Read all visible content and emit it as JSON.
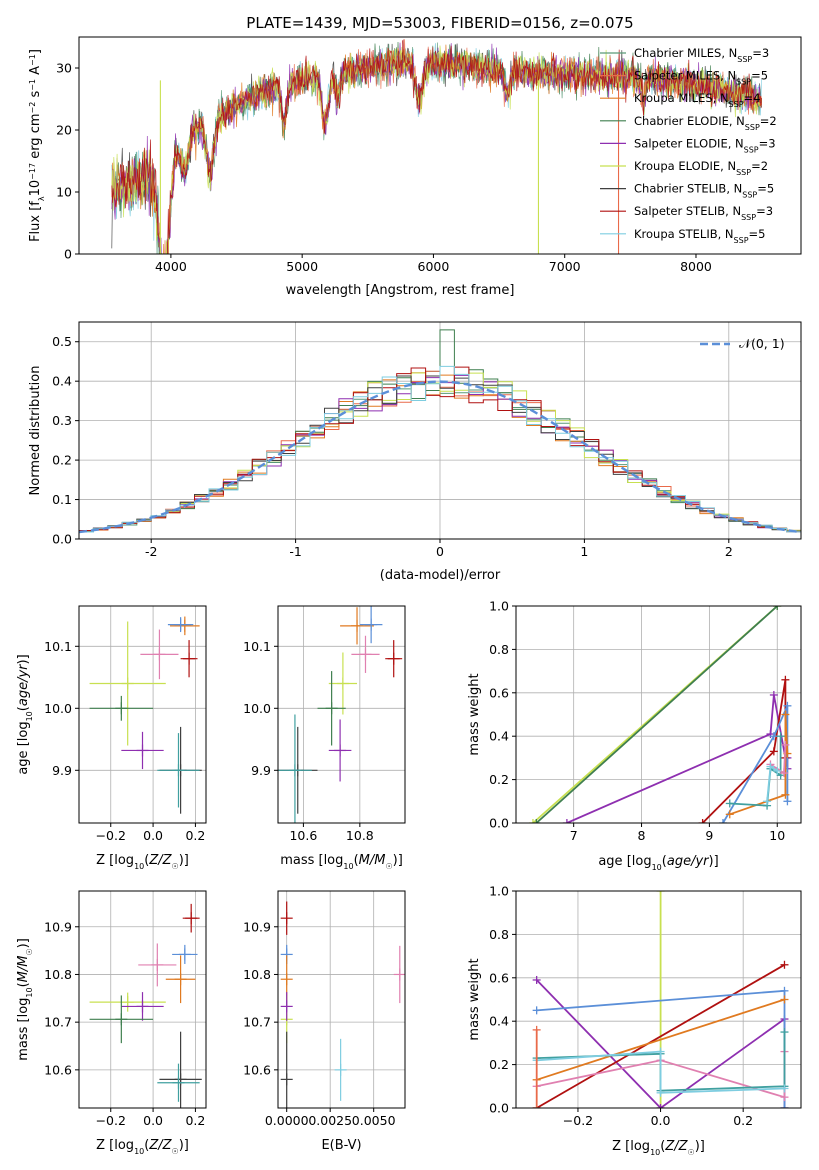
{
  "figure_title": "PLATE=1439, MJD=53003, FIBERID=0156, z=0.075",
  "colors": {
    "chab_miles": "#5a9a78",
    "salp_miles": "#e96a4a",
    "krou_miles": "#e07a20",
    "chab_elodie": "#3f7f4f",
    "salp_elodie": "#8e2fb0",
    "krou_elodie": "#c8e050",
    "chab_stelib": "#404040",
    "salp_stelib": "#b01010",
    "krou_stelib": "#7ecde0",
    "blue": "#5b8fd8",
    "pink": "#e080b0",
    "teal": "#40a0a0"
  },
  "chart_data": [
    {
      "id": "spectrum",
      "type": "line",
      "xlabel": "wavelength [Angstrom, rest frame]",
      "ylabel": "Flux [f_λ10^-17 erg cm^-2 s^-1 A^-1]",
      "xlim": [
        3300,
        8800
      ],
      "ylim": [
        0,
        35
      ],
      "xticks": [
        4000,
        5000,
        6000,
        7000,
        8000
      ],
      "yticks": [
        0,
        10,
        20,
        30
      ],
      "grid": false,
      "legend_position": "top-right",
      "continuum_x": [
        3550,
        3700,
        3900,
        4000,
        4100,
        4300,
        4500,
        4800,
        5000,
        5200,
        5500,
        5800,
        6200,
        6600,
        7000,
        7400,
        7800,
        8200,
        8500
      ],
      "continuum_y": [
        10,
        11.5,
        13.5,
        17,
        19.5,
        21,
        24,
        27,
        28,
        29,
        30,
        31,
        30.5,
        29.5,
        29,
        28.5,
        28,
        26.5,
        25
      ],
      "series": [
        {
          "name": "Chabrier MILES, N_SSP=3",
          "color_key": "chab_miles"
        },
        {
          "name": "Salpeter MILES, N_SSP=5",
          "color_key": "salp_miles"
        },
        {
          "name": "Kroupa MILES, N_SSP=4",
          "color_key": "krou_miles"
        },
        {
          "name": "Chabrier ELODIE, N_SSP=2",
          "color_key": "chab_elodie"
        },
        {
          "name": "Salpeter ELODIE, N_SSP=3",
          "color_key": "salp_elodie"
        },
        {
          "name": "Kroupa ELODIE, N_SSP=2",
          "color_key": "krou_elodie"
        },
        {
          "name": "Chabrier STELIB, N_SSP=5",
          "color_key": "chab_stelib"
        },
        {
          "name": "Salpeter STELIB, N_SSP=3",
          "color_key": "salp_stelib"
        },
        {
          "name": "Kroupa STELIB, N_SSP=5",
          "color_key": "krou_stelib"
        }
      ],
      "dropouts": [
        {
          "x": 3920,
          "color_key": "krou_elodie"
        },
        {
          "x": 6800,
          "color_key": "krou_elodie"
        },
        {
          "x": 7410,
          "color_key": "salp_miles"
        }
      ]
    },
    {
      "id": "residuals",
      "type": "line",
      "xlabel": "(data-model)/error",
      "ylabel": "Normed distribution",
      "xlim": [
        -2.5,
        2.5
      ],
      "ylim": [
        0,
        0.55
      ],
      "xticks": [
        -2,
        -1,
        0,
        1,
        2
      ],
      "yticks": [
        0.0,
        0.1,
        0.2,
        0.3,
        0.4,
        0.5
      ],
      "grid": true,
      "legend_position": "top-right",
      "reference": {
        "name": "𝒩(0, 1)",
        "color_key": "blue",
        "mu": 0,
        "sigma": 1
      },
      "bin_width": 0.1
    },
    {
      "id": "age_vs_Z",
      "type": "scatter",
      "xlabel": "Z [log10(Z/Z☉)]",
      "ylabel": "age  [log10(age/yr)]",
      "xlim": [
        -0.35,
        0.25
      ],
      "ylim": [
        9.815,
        10.165
      ],
      "xticks": [
        -0.2,
        0.0,
        0.2
      ],
      "xticklabels": [
        "−0.2",
        "0.0",
        "0.2"
      ],
      "yticks": [
        9.9,
        10.0,
        10.1
      ],
      "yticklabels": [
        "9.9",
        "10.0",
        "10.1"
      ],
      "grid": true,
      "points": [
        {
          "x": 0.15,
          "y": 10.133,
          "xerr": 0.07,
          "yerr": 0.015,
          "color_key": "krou_miles"
        },
        {
          "x": 0.13,
          "y": 10.135,
          "xerr": 0.06,
          "yerr": 0.012,
          "color_key": "blue"
        },
        {
          "x": 0.17,
          "y": 10.08,
          "xerr": 0.04,
          "yerr": 0.03,
          "color_key": "salp_stelib"
        },
        {
          "x": 0.03,
          "y": 10.087,
          "xerr": 0.09,
          "yerr": 0.04,
          "color_key": "pink"
        },
        {
          "x": -0.12,
          "y": 10.04,
          "xerr": 0.18,
          "yerr": 0.1,
          "color_key": "krou_elodie"
        },
        {
          "x": -0.15,
          "y": 10.0,
          "xerr": 0.15,
          "yerr": 0.02,
          "color_key": "chab_elodie"
        },
        {
          "x": -0.05,
          "y": 9.932,
          "xerr": 0.1,
          "yerr": 0.03,
          "color_key": "salp_elodie"
        },
        {
          "x": 0.13,
          "y": 9.9,
          "xerr": 0.1,
          "yerr": 0.07,
          "color_key": "chab_stelib"
        },
        {
          "x": 0.12,
          "y": 9.9,
          "xerr": 0.1,
          "yerr": 0.06,
          "color_key": "teal"
        }
      ]
    },
    {
      "id": "age_vs_mass",
      "type": "scatter",
      "xlabel": "mass [log10(M/M☉)]",
      "ylabel": "",
      "xlim": [
        10.51,
        10.96
      ],
      "ylim": [
        9.815,
        10.165
      ],
      "xticks": [
        10.6,
        10.8
      ],
      "xticklabels": [
        "10.6",
        "10.8"
      ],
      "yticks": [
        9.9,
        10.0,
        10.1
      ],
      "yticklabels": [
        "9.9",
        "10.0",
        "10.1"
      ],
      "grid": true,
      "points": [
        {
          "x": 10.79,
          "y": 10.133,
          "xerr": 0.06,
          "yerr": 0.03,
          "color_key": "krou_miles"
        },
        {
          "x": 10.84,
          "y": 10.135,
          "xerr": 0.04,
          "yerr": 0.03,
          "color_key": "blue"
        },
        {
          "x": 10.92,
          "y": 10.08,
          "xerr": 0.03,
          "yerr": 0.03,
          "color_key": "salp_stelib"
        },
        {
          "x": 10.82,
          "y": 10.087,
          "xerr": 0.05,
          "yerr": 0.03,
          "color_key": "pink"
        },
        {
          "x": 10.74,
          "y": 10.04,
          "xerr": 0.05,
          "yerr": 0.05,
          "color_key": "krou_elodie"
        },
        {
          "x": 10.7,
          "y": 10.0,
          "xerr": 0.05,
          "yerr": 0.06,
          "color_key": "chab_elodie"
        },
        {
          "x": 10.73,
          "y": 9.932,
          "xerr": 0.04,
          "yerr": 0.05,
          "color_key": "salp_elodie"
        },
        {
          "x": 10.58,
          "y": 9.9,
          "xerr": 0.07,
          "yerr": 0.07,
          "color_key": "chab_stelib"
        },
        {
          "x": 10.57,
          "y": 9.9,
          "xerr": 0.06,
          "yerr": 0.09,
          "color_key": "teal"
        }
      ]
    },
    {
      "id": "weight_vs_age",
      "type": "line",
      "xlabel": "age  [log10(age/yr)]",
      "ylabel": "mass weight",
      "xlim": [
        6.15,
        10.35
      ],
      "ylim": [
        0,
        1
      ],
      "xticks": [
        7,
        8,
        9,
        10
      ],
      "xticklabels": [
        "7",
        "8",
        "9",
        "10"
      ],
      "yticks": [
        0,
        0.2,
        0.4,
        0.6,
        0.8,
        1.0
      ],
      "yticklabels": [
        "0.0",
        "0.2",
        "0.4",
        "0.6",
        "0.8",
        "1.0"
      ],
      "grid": true,
      "series": [
        {
          "color_key": "krou_elodie",
          "x": [
            6.4,
            10.0
          ],
          "y": [
            0,
            1
          ]
        },
        {
          "color_key": "chab_elodie",
          "x": [
            6.45,
            10.0
          ],
          "y": [
            0,
            1
          ]
        },
        {
          "color_key": "salp_elodie",
          "x": [
            6.9,
            9.9,
            9.95,
            10.15,
            10.15
          ],
          "y": [
            0,
            0.41,
            0.59,
            0.25,
            0.3
          ]
        },
        {
          "color_key": "salp_stelib",
          "x": [
            8.9,
            9.95,
            10.12,
            10.12
          ],
          "y": [
            0,
            0.33,
            0.66,
            0.3
          ]
        },
        {
          "color_key": "blue",
          "x": [
            9.2,
            9.95,
            10.15,
            10.15
          ],
          "y": [
            0,
            0.4,
            0.54,
            0.1
          ]
        },
        {
          "color_key": "krou_miles",
          "x": [
            9.3,
            10.12,
            10.12,
            10.15
          ],
          "y": [
            0.04,
            0.13,
            0.5,
            0.32
          ]
        },
        {
          "color_key": "teal",
          "x": [
            9.3,
            9.85,
            9.9,
            10.05,
            10.05
          ],
          "y": [
            0.09,
            0.08,
            0.25,
            0.22,
            0.4
          ]
        },
        {
          "color_key": "pink",
          "x": [
            9.9,
            10.1,
            10.12
          ],
          "y": [
            0.27,
            0.23,
            0.36
          ]
        },
        {
          "color_key": "krou_stelib",
          "x": [
            9.85,
            9.9,
            10.0
          ],
          "y": [
            0.1,
            0.26,
            0.24
          ]
        }
      ]
    },
    {
      "id": "mass_vs_Z",
      "type": "scatter",
      "xlabel": "Z [log10(Z/Z☉)]",
      "ylabel": "mass [log10(M/M☉)]",
      "xlim": [
        -0.35,
        0.25
      ],
      "ylim": [
        10.52,
        10.975
      ],
      "xticks": [
        -0.2,
        0.0,
        0.2
      ],
      "xticklabels": [
        "−0.2",
        "0.0",
        "0.2"
      ],
      "yticks": [
        10.6,
        10.7,
        10.8,
        10.9
      ],
      "yticklabels": [
        "10.6",
        "10.7",
        "10.8",
        "10.9"
      ],
      "grid": true,
      "points": [
        {
          "x": 0.18,
          "y": 10.918,
          "xerr": 0.04,
          "yerr": 0.03,
          "color_key": "salp_stelib"
        },
        {
          "x": 0.15,
          "y": 10.842,
          "xerr": 0.06,
          "yerr": 0.02,
          "color_key": "blue"
        },
        {
          "x": 0.13,
          "y": 10.79,
          "xerr": 0.07,
          "yerr": 0.05,
          "color_key": "krou_miles"
        },
        {
          "x": 0.02,
          "y": 10.82,
          "xerr": 0.09,
          "yerr": 0.045,
          "color_key": "pink"
        },
        {
          "x": -0.12,
          "y": 10.742,
          "xerr": 0.18,
          "yerr": 0.02,
          "color_key": "krou_elodie"
        },
        {
          "x": -0.05,
          "y": 10.733,
          "xerr": 0.1,
          "yerr": 0.03,
          "color_key": "salp_elodie"
        },
        {
          "x": -0.15,
          "y": 10.706,
          "xerr": 0.15,
          "yerr": 0.05,
          "color_key": "chab_elodie"
        },
        {
          "x": 0.13,
          "y": 10.58,
          "xerr": 0.1,
          "yerr": 0.1,
          "color_key": "chab_stelib"
        },
        {
          "x": 0.12,
          "y": 10.573,
          "xerr": 0.1,
          "yerr": 0.04,
          "color_key": "teal"
        }
      ]
    },
    {
      "id": "mass_vs_EBV",
      "type": "scatter",
      "xlabel": "E(B-V)",
      "ylabel": "",
      "xlim": [
        -0.0005,
        0.0068
      ],
      "ylim": [
        10.52,
        10.975
      ],
      "xticks": [
        0.0,
        0.0025,
        0.005
      ],
      "xticklabels": [
        "0.0000",
        "0.0025",
        "0.0050"
      ],
      "yticks": [
        10.6,
        10.7,
        10.8,
        10.9
      ],
      "yticklabels": [
        "10.6",
        "10.7",
        "10.8",
        "10.9"
      ],
      "grid": true,
      "points": [
        {
          "x": 0.0,
          "y": 10.918,
          "xerr": 0,
          "yerr": 0.035,
          "color_key": "salp_stelib"
        },
        {
          "x": 0.0,
          "y": 10.842,
          "xerr": 0,
          "yerr": 0.02,
          "color_key": "blue"
        },
        {
          "x": 0.0,
          "y": 10.79,
          "xerr": 0,
          "yerr": 0.05,
          "color_key": "krou_miles"
        },
        {
          "x": 0.0,
          "y": 10.706,
          "xerr": 0,
          "yerr": 0.05,
          "color_key": "krou_elodie"
        },
        {
          "x": 0.0,
          "y": 10.733,
          "xerr": 0,
          "yerr": 0.03,
          "color_key": "salp_elodie"
        },
        {
          "x": 0.0,
          "y": 10.58,
          "xerr": 0,
          "yerr": 0.1,
          "color_key": "chab_stelib"
        },
        {
          "x": 0.0031,
          "y": 10.6,
          "xerr": 0,
          "yerr": 0.065,
          "color_key": "krou_stelib"
        },
        {
          "x": 0.0065,
          "y": 10.8,
          "xerr": 0,
          "yerr": 0.06,
          "color_key": "pink"
        }
      ]
    },
    {
      "id": "weight_vs_Z",
      "type": "line",
      "xlabel": "Z [log10(Z/Z☉)]",
      "ylabel": "mass weight",
      "xlim": [
        -0.35,
        0.34
      ],
      "ylim": [
        0,
        1
      ],
      "xticks": [
        -0.2,
        0.0,
        0.2
      ],
      "xticklabels": [
        "−0.2",
        "0.0",
        "0.2"
      ],
      "yticks": [
        0,
        0.2,
        0.4,
        0.6,
        0.8,
        1.0
      ],
      "yticklabels": [
        "0.0",
        "0.2",
        "0.4",
        "0.6",
        "0.8",
        "1.0"
      ],
      "grid": true,
      "series": [
        {
          "color_key": "krou_elodie",
          "x": [
            0.0,
            0.0
          ],
          "y": [
            0,
            1
          ]
        },
        {
          "color_key": "salp_elodie",
          "x": [
            -0.3,
            0.0,
            0.3,
            0.3
          ],
          "y": [
            0.59,
            0,
            0.41,
            0.0
          ]
        },
        {
          "color_key": "salp_stelib",
          "x": [
            -0.3,
            0.3
          ],
          "y": [
            0,
            0.66
          ]
        },
        {
          "color_key": "blue",
          "x": [
            -0.3,
            0.3,
            0.3
          ],
          "y": [
            0.45,
            0.54,
            0.0
          ]
        },
        {
          "color_key": "krou_miles",
          "x": [
            -0.3,
            0.3
          ],
          "y": [
            0.13,
            0.5
          ]
        },
        {
          "color_key": "pink",
          "x": [
            -0.3,
            0.0,
            0.3,
            0.3
          ],
          "y": [
            0.1,
            0.22,
            0.05,
            0.26
          ]
        },
        {
          "color_key": "teal",
          "x": [
            -0.3,
            0.0,
            0.0,
            0.3,
            0.3
          ],
          "y": [
            0.23,
            0.25,
            0.08,
            0.1,
            0.35
          ]
        },
        {
          "color_key": "krou_stelib",
          "x": [
            -0.3,
            0.0,
            0.0,
            0.3
          ],
          "y": [
            0.22,
            0.26,
            0.07,
            0.09
          ]
        },
        {
          "color_key": "salp_miles",
          "x": [
            -0.3,
            -0.3
          ],
          "y": [
            0.36,
            0.0
          ]
        }
      ]
    }
  ]
}
